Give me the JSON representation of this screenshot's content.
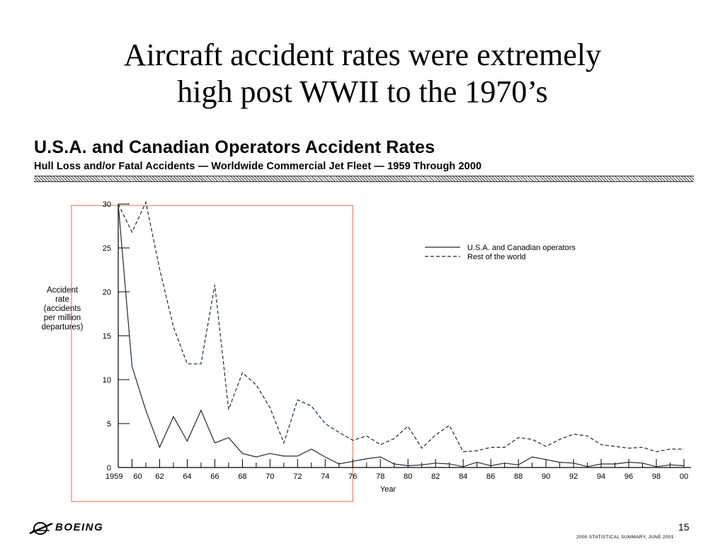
{
  "slide": {
    "title_lines": [
      "Aircraft accident rates were extremely",
      "high post WWII to the 1970’s"
    ],
    "page_number": "15",
    "footer_note": "2000 STATISTICAL SUMMARY, JUNE 2001",
    "logo_text": "BOEING",
    "highlight_color": "#e8694a"
  },
  "chart_data": {
    "type": "line",
    "title": "U.S.A. and Canadian Operators Accident Rates",
    "subtitle": "Hull Loss and/or Fatal Accidents — Worldwide Commercial Jet Fleet — 1959 Through 2000",
    "xlabel": "Year",
    "ylabel_lines": [
      "Accident",
      "rate",
      "(accidents",
      "per million",
      "departures)"
    ],
    "ylim": [
      0,
      30
    ],
    "yticks": [
      0,
      5,
      10,
      15,
      20,
      25,
      30
    ],
    "x": [
      1959,
      1960,
      1961,
      1962,
      1963,
      1964,
      1965,
      1966,
      1967,
      1968,
      1969,
      1970,
      1971,
      1972,
      1973,
      1974,
      1975,
      1976,
      1977,
      1978,
      1979,
      1980,
      1981,
      1982,
      1983,
      1984,
      1985,
      1986,
      1987,
      1988,
      1989,
      1990,
      1991,
      1992,
      1993,
      1994,
      1995,
      1996,
      1997,
      1998,
      1999,
      2000
    ],
    "xtick_labels": [
      "1959",
      "60",
      "62",
      "64",
      "66",
      "68",
      "70",
      "72",
      "74",
      "76",
      "78",
      "80",
      "82",
      "84",
      "86",
      "88",
      "90",
      "92",
      "94",
      "96",
      "98",
      "00"
    ],
    "xtick_label_years": [
      1959,
      1960,
      1962,
      1964,
      1966,
      1968,
      1970,
      1972,
      1974,
      1976,
      1978,
      1980,
      1982,
      1984,
      1986,
      1988,
      1990,
      1992,
      1994,
      1996,
      1998,
      2000
    ],
    "highlight_range": [
      1959,
      1976
    ],
    "series": [
      {
        "name": "U.S.A. and Canadian operators",
        "style": "solid",
        "values": [
          30,
          11.5,
          6.5,
          2.3,
          5.8,
          3,
          6.5,
          2.8,
          3.4,
          1.6,
          1.2,
          1.6,
          1.3,
          1.3,
          2.1,
          1.2,
          0.4,
          0.7,
          1,
          1.2,
          0.4,
          0.2,
          0.3,
          0.5,
          0.4,
          0.1,
          0.6,
          0.2,
          0.5,
          0.3,
          1.2,
          0.9,
          0.6,
          0.5,
          0.1,
          0.4,
          0.4,
          0.6,
          0.5,
          0.1,
          0.3,
          0.2
        ]
      },
      {
        "name": "Rest of the world",
        "style": "dashed",
        "values": [
          30,
          26.8,
          30.2,
          22.6,
          16,
          11.8,
          11.8,
          20.8,
          6.6,
          10.8,
          9.4,
          6.8,
          2.8,
          7.7,
          7,
          5,
          4,
          3.1,
          3.6,
          2.6,
          3.3,
          4.7,
          2.2,
          3.7,
          4.8,
          1.8,
          1.9,
          2.3,
          2.3,
          3.4,
          3.2,
          2.4,
          3.2,
          3.8,
          3.6,
          2.6,
          2.4,
          2.2,
          2.3,
          1.8,
          2.1,
          2.1
        ]
      }
    ]
  }
}
